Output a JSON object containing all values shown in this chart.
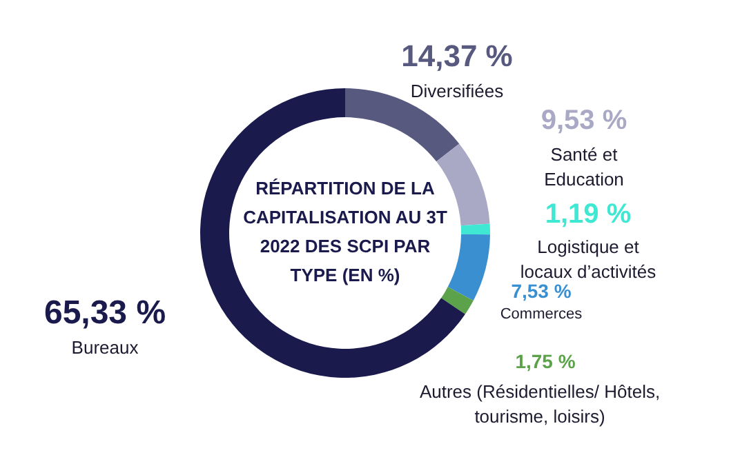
{
  "chart_data": {
    "type": "donut",
    "title": "RÉPARTITION DE LA CAPITALISATION AU 3T 2022 DES SCPI PAR TYPE (EN %)",
    "categories": [
      "Diversifiées",
      "Santé et Education",
      "Logistique et locaux d’activités",
      "Commerces",
      "Autres (Résidentielles/ Hôtels, tourisme, loisirs)",
      "Bureaux"
    ],
    "values": [
      14.37,
      9.53,
      1.19,
      7.53,
      1.75,
      65.33
    ],
    "value_labels": [
      "14,37 %",
      "9,53 %",
      "1,19 %",
      "7,53 %",
      "1,75 %",
      "65,33 %"
    ],
    "colors": [
      "#57597f",
      "#a9a9c6",
      "#3ee8d2",
      "#3a8fd1",
      "#5ba24a",
      "#1b1a4d"
    ],
    "legend": false
  }
}
